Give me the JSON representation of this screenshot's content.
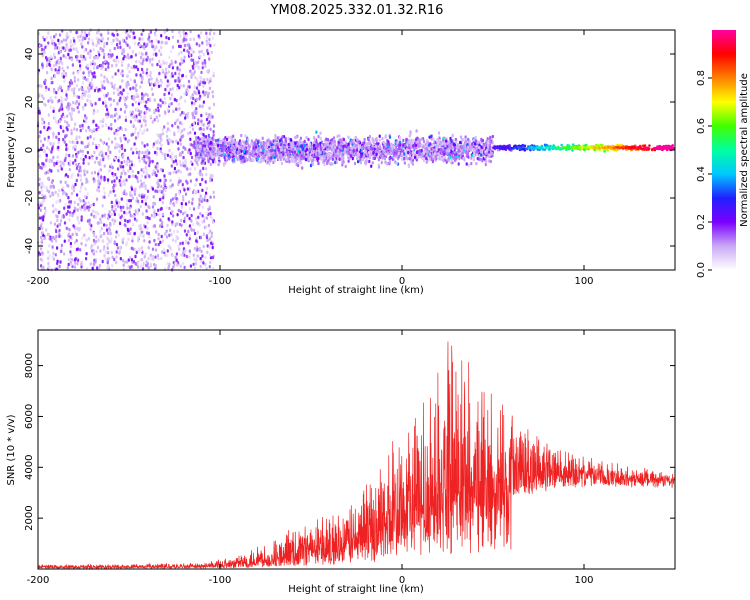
{
  "title": "YM08.2025.332.01.32.R16",
  "chart_data": [
    {
      "type": "heatmap",
      "name": "spectrogram",
      "xlabel": "Height of straight line (km)",
      "ylabel": "Frequency (Hz)",
      "xlim": [
        -200,
        150
      ],
      "ylim": [
        -50,
        50
      ],
      "xticks": [
        -200,
        -100,
        0,
        100
      ],
      "yticks": [
        -40,
        -20,
        0,
        20,
        40
      ],
      "description_bands": [
        {
          "x_from": -200,
          "x_to": -103,
          "freq_spread": 50,
          "amplitude": 0.1
        },
        {
          "x_from": -113,
          "x_to": 50,
          "freq_spread": 10,
          "amplitude": 0.3
        },
        {
          "x_from": 50,
          "x_to": 150,
          "freq_spread": 2,
          "amplitude": 1.0
        }
      ],
      "colorbar": {
        "label": "Normalized spectral amplitude",
        "range": [
          0.0,
          1.0
        ],
        "ticks": [
          0.0,
          0.2,
          0.4,
          0.6,
          0.8
        ],
        "colors": [
          "#ffffff",
          "#c9a8f5",
          "#7a00ff",
          "#2020ff",
          "#00c8ff",
          "#00ffa0",
          "#40ff00",
          "#ffff00",
          "#ff8000",
          "#ff0000",
          "#ff00a0"
        ]
      }
    },
    {
      "type": "line",
      "name": "snr",
      "xlabel": "Height of straight line (km)",
      "ylabel": "SNR (10 * v/v)",
      "xlim": [
        -200,
        150
      ],
      "ylim": [
        0,
        9400
      ],
      "xticks": [
        -200,
        -100,
        0,
        100
      ],
      "yticks": [
        2000,
        4000,
        6000,
        8000
      ],
      "color": "#ee2222",
      "envelope": {
        "x": [
          -200,
          -150,
          -110,
          -90,
          -70,
          -50,
          -30,
          -15,
          0,
          15,
          25,
          35,
          50,
          70,
          90,
          110,
          130,
          150
        ],
        "base": [
          70,
          70,
          90,
          150,
          300,
          600,
          850,
          1100,
          1500,
          2100,
          2600,
          2900,
          3100,
          3300,
          3600,
          3700,
          3600,
          3600
        ],
        "peak": [
          180,
          200,
          250,
          550,
          1300,
          1900,
          2600,
          4000,
          5900,
          7200,
          9300,
          8600,
          7000,
          5500,
          4700,
          4300,
          4100,
          3900
        ]
      }
    }
  ]
}
